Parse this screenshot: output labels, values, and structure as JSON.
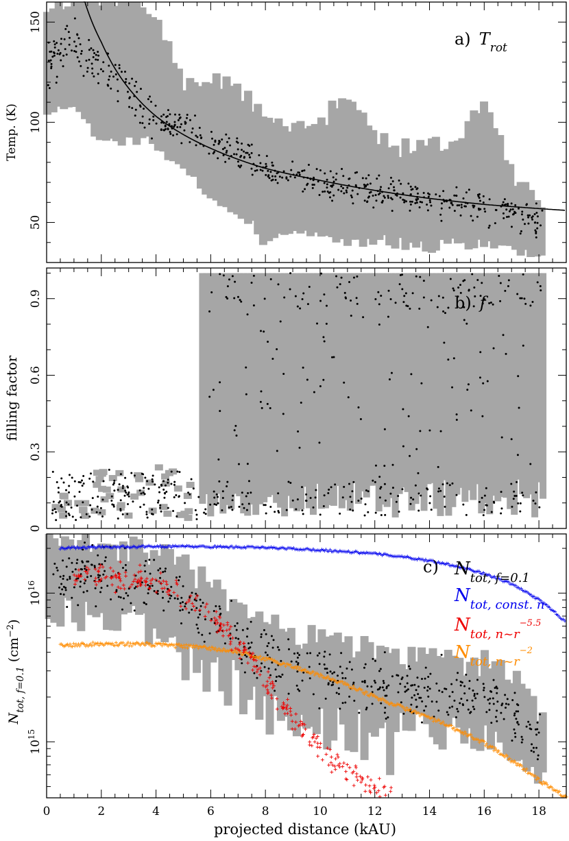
{
  "chart_data": [
    {
      "panel_label": "a)",
      "panel_symbol": "T",
      "panel_symbol_sub": "rot",
      "type": "scatter",
      "ylabel": "Temp. (K)",
      "xlim": [
        0,
        19
      ],
      "ylim": [
        30,
        160
      ],
      "yticks": [
        50,
        100,
        150
      ],
      "grid": false,
      "curve_fit": {
        "form": "power-law",
        "points": [
          [
            1.4,
            160
          ],
          [
            2,
            140
          ],
          [
            3,
            117
          ],
          [
            4,
            103
          ],
          [
            6,
            87
          ],
          [
            8,
            77
          ],
          [
            10,
            71
          ],
          [
            12,
            66
          ],
          [
            14,
            62
          ],
          [
            16,
            59
          ],
          [
            19,
            56
          ]
        ]
      },
      "series_summary": [
        {
          "x": 0.2,
          "center": 132,
          "lo": 105,
          "hi": 155
        },
        {
          "x": 1.0,
          "center": 140,
          "lo": 110,
          "hi": 160
        },
        {
          "x": 2.0,
          "center": 125,
          "lo": 88,
          "hi": 160
        },
        {
          "x": 3.0,
          "center": 115,
          "lo": 92,
          "hi": 160
        },
        {
          "x": 4.0,
          "center": 102,
          "lo": 88,
          "hi": 152
        },
        {
          "x": 5.0,
          "center": 97,
          "lo": 80,
          "hi": 120
        },
        {
          "x": 6.0,
          "center": 90,
          "lo": 60,
          "hi": 120
        },
        {
          "x": 7.0,
          "center": 85,
          "lo": 55,
          "hi": 118
        },
        {
          "x": 8.0,
          "center": 78,
          "lo": 40,
          "hi": 105
        },
        {
          "x": 9.0,
          "center": 73,
          "lo": 45,
          "hi": 95
        },
        {
          "x": 10.0,
          "center": 70,
          "lo": 45,
          "hi": 100
        },
        {
          "x": 11.0,
          "center": 68,
          "lo": 40,
          "hi": 113
        },
        {
          "x": 12.0,
          "center": 66,
          "lo": 40,
          "hi": 95
        },
        {
          "x": 13.0,
          "center": 64,
          "lo": 38,
          "hi": 88
        },
        {
          "x": 14.0,
          "center": 62,
          "lo": 38,
          "hi": 88
        },
        {
          "x": 15.0,
          "center": 60,
          "lo": 38,
          "hi": 88
        },
        {
          "x": 16.0,
          "center": 57,
          "lo": 40,
          "hi": 110
        },
        {
          "x": 17.0,
          "center": 55,
          "lo": 36,
          "hi": 75
        },
        {
          "x": 18.0,
          "center": 52,
          "lo": 34,
          "hi": 60
        }
      ]
    },
    {
      "panel_label": "b)",
      "panel_symbol": "f",
      "type": "scatter",
      "ylabel": "filling factor",
      "xlim": [
        0,
        19
      ],
      "ylim": [
        0,
        1.0
      ],
      "yticks": [
        0,
        0.3,
        0.6,
        0.9
      ],
      "grid": false,
      "note_values": {
        "transition_x": 5.7,
        "gray_band_top_beyond_transition": 1.0
      },
      "series_summary": [
        {
          "x": 0.2,
          "center": 0.08,
          "lo": 0.06,
          "hi": 0.1
        },
        {
          "x": 1.0,
          "center": 0.1,
          "lo": 0.05,
          "hi": 0.15
        },
        {
          "x": 2.0,
          "center": 0.12,
          "lo": 0.05,
          "hi": 0.2
        },
        {
          "x": 3.0,
          "center": 0.14,
          "lo": 0.05,
          "hi": 0.24
        },
        {
          "x": 4.0,
          "center": 0.13,
          "lo": 0.05,
          "hi": 0.24
        },
        {
          "x": 5.0,
          "center": 0.1,
          "lo": 0.05,
          "hi": 0.2
        },
        {
          "x": 7.0,
          "center": 0.3,
          "lo": 0.05,
          "hi": 1.0
        },
        {
          "x": 10.0,
          "center": 0.5,
          "lo": 0.06,
          "hi": 1.0
        },
        {
          "x": 13.0,
          "center": 0.6,
          "lo": 0.06,
          "hi": 1.0
        },
        {
          "x": 16.0,
          "center": 0.7,
          "lo": 0.06,
          "hi": 1.0
        },
        {
          "x": 18.0,
          "center": 0.8,
          "lo": 0.16,
          "hi": 1.0
        }
      ]
    },
    {
      "panel_label": "c)",
      "type": "scatter",
      "yscale": "log",
      "xlabel": "projected distance (kAU)",
      "ylabel": "N",
      "ylabel_sub": "tot, f=0.1",
      "ylabel_unit": "(cm",
      "ylabel_unit_sup": "−2",
      "ylabel_unit_close": ")",
      "xlim": [
        0,
        19
      ],
      "xticks": [
        0,
        2,
        4,
        6,
        8,
        10,
        12,
        14,
        16,
        18
      ],
      "ylim": [
        420000000000000.0,
        2.5e+16
      ],
      "yticks": [
        1000000000000000.0,
        1e+16
      ],
      "ytick_labels": [
        {
          "base": "10",
          "exp": "15"
        },
        {
          "base": "10",
          "exp": "16"
        }
      ],
      "grid": false,
      "legend_placement": "top-right",
      "series": [
        {
          "name_main": "N",
          "name_sub": "tot, f=0.1",
          "name_sup": "",
          "color": "#000000",
          "marker": "dot",
          "x": [
            0.2,
            1.0,
            2.0,
            3.0,
            4.0,
            5.0,
            6.0,
            7.0,
            8.0,
            9.0,
            10.0,
            11.0,
            12.0,
            13.0,
            14.0,
            15.0,
            16.0,
            17.0,
            18.0
          ],
          "values": [
            1.4e+16,
            1.4e+16,
            1.3e+16,
            1.2e+16,
            1.1e+16,
            9000000000000000.0,
            6500000000000000.0,
            5000000000000000.0,
            3800000000000000.0,
            3200000000000000.0,
            2800000000000000.0,
            2600000000000000.0,
            2400000000000000.0,
            2300000000000000.0,
            2200000000000000.0,
            2100000000000000.0,
            2000000000000000.0,
            1600000000000000.0,
            900000000000000.0
          ]
        },
        {
          "name_main": "N",
          "name_sub": "tot, const. n",
          "name_sup": "",
          "color": "#0000ee",
          "marker": "plus",
          "x": [
            0.5,
            1,
            2,
            3,
            4,
            5,
            6,
            7,
            8,
            9,
            10,
            11,
            12,
            13,
            14,
            15,
            16,
            17,
            18,
            19
          ],
          "values": [
            2e+16,
            2.02e+16,
            2.04e+16,
            2.05e+16,
            2.06e+16,
            2.06e+16,
            2.05e+16,
            2.04e+16,
            2.02e+16,
            1.99e+16,
            1.95e+16,
            1.9e+16,
            1.84e+16,
            1.76e+16,
            1.65e+16,
            1.52e+16,
            1.35e+16,
            1.15e+16,
            9000000000000000.0,
            6300000000000000.0
          ]
        },
        {
          "name_main": "N",
          "name_sub": "tot, n~r",
          "name_sup": "−5.5",
          "color": "#ee0000",
          "marker": "plus",
          "x": [
            1.0,
            2.0,
            3.0,
            4.0,
            5.0,
            6.0,
            7.0,
            8.0,
            9.0,
            10.0,
            11.0,
            12.0,
            12.6
          ],
          "values": [
            1.3e+16,
            1.3e+16,
            1.25e+16,
            1.15e+16,
            9500000000000000.0,
            7000000000000000.0,
            4500000000000000.0,
            2500000000000000.0,
            1400000000000000.0,
            900000000000000.0,
            620000000000000.0,
            480000000000000.0,
            430000000000000.0
          ]
        },
        {
          "name_main": "N",
          "name_sub": "tot, n~r",
          "name_sup": "−2",
          "color": "#ff8c00",
          "marker": "plus",
          "x": [
            0.5,
            1,
            2,
            3,
            4,
            5,
            6,
            7,
            8,
            9,
            10,
            11,
            12,
            13,
            14,
            15,
            16,
            17,
            18,
            19
          ],
          "values": [
            4500000000000000.0,
            4500000000000000.0,
            4550000000000000.0,
            4550000000000000.0,
            4500000000000000.0,
            4400000000000000.0,
            4250000000000000.0,
            4000000000000000.0,
            3600000000000000.0,
            3200000000000000.0,
            2800000000000000.0,
            2400000000000000.0,
            2000000000000000.0,
            1700000000000000.0,
            1450000000000000.0,
            1200000000000000.0,
            980000000000000.0,
            750000000000000.0,
            550000000000000.0,
            420000000000000.0
          ]
        }
      ]
    }
  ]
}
